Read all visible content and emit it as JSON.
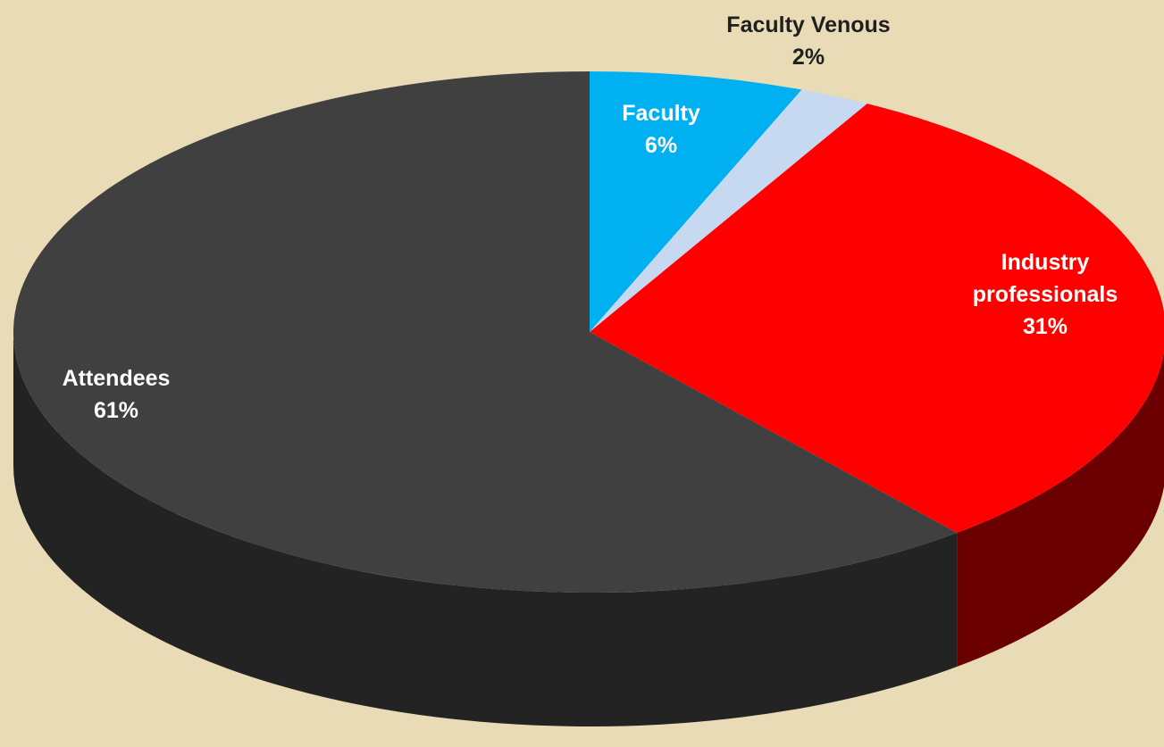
{
  "chart_data": {
    "type": "pie3d",
    "categories": [
      "Faculty",
      "Faculty Venous",
      "Industry professionals",
      "Attendees"
    ],
    "values": [
      6,
      2,
      31,
      61
    ],
    "value_labels": [
      "6%",
      "2%",
      "31%",
      "61%"
    ],
    "colors": [
      "#00b0f0",
      "#c6d9f1",
      "#ff0000",
      "#404040"
    ],
    "side_colors": [
      "#0077a8",
      "#8fa3bd",
      "#6a0000",
      "#232323"
    ]
  }
}
